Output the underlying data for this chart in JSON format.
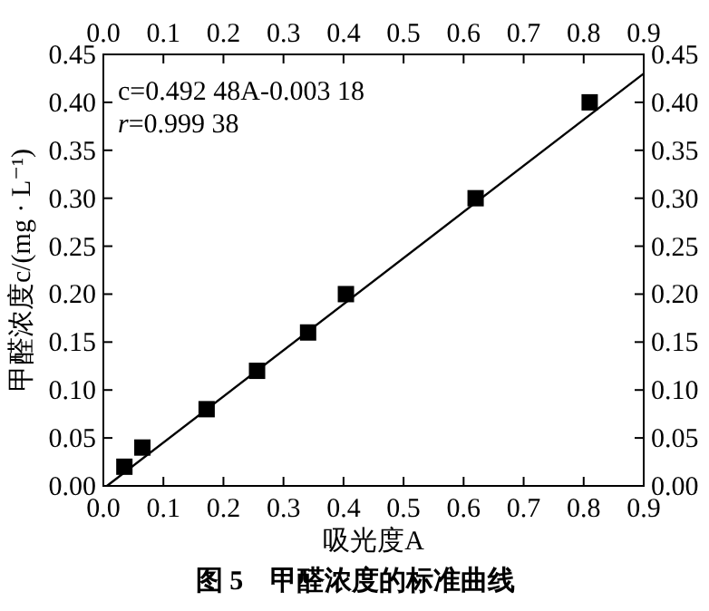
{
  "chart_data": {
    "type": "scatter",
    "title": "图 5　甲醛浓度的标准曲线",
    "xlabel": "吸光度A",
    "ylabel": "甲醛浓度c/(mg · L⁻¹)",
    "annotations": [
      "c=0.492 48A-0.003 18",
      "*r*=0.999 38"
    ],
    "xlim": [
      0,
      0.9
    ],
    "ylim": [
      0,
      0.45
    ],
    "x2lim": [
      0,
      0.9
    ],
    "y2lim": [
      0,
      0.45
    ],
    "xticks": [
      {
        "value": 0,
        "label": "0.0"
      },
      {
        "value": 0.1,
        "label": "0.1"
      },
      {
        "value": 0.2,
        "label": "0.2"
      },
      {
        "value": 0.3,
        "label": "0.3"
      },
      {
        "value": 0.4,
        "label": "0.4"
      },
      {
        "value": 0.5,
        "label": "0.5"
      },
      {
        "value": 0.6,
        "label": "0.6"
      },
      {
        "value": 0.7,
        "label": "0.7"
      },
      {
        "value": 0.8,
        "label": "0.8"
      },
      {
        "value": 0.9,
        "label": "0.9"
      }
    ],
    "x2ticks": [
      {
        "value": 0,
        "label": "0.0"
      },
      {
        "value": 0.1,
        "label": "0.1"
      },
      {
        "value": 0.2,
        "label": "0.2"
      },
      {
        "value": 0.3,
        "label": "0.3"
      },
      {
        "value": 0.4,
        "label": "0.4"
      },
      {
        "value": 0.5,
        "label": "0.5"
      },
      {
        "value": 0.6,
        "label": "0.6"
      },
      {
        "value": 0.7,
        "label": "0.7"
      },
      {
        "value": 0.8,
        "label": "0.8"
      },
      {
        "value": 0.9,
        "label": "0.9"
      }
    ],
    "yticks": [
      {
        "value": 0,
        "label": "0.00"
      },
      {
        "value": 0.05,
        "label": "0.05"
      },
      {
        "value": 0.1,
        "label": "0.10"
      },
      {
        "value": 0.15,
        "label": "0.15"
      },
      {
        "value": 0.2,
        "label": "0.20"
      },
      {
        "value": 0.25,
        "label": "0.25"
      },
      {
        "value": 0.3,
        "label": "0.30"
      },
      {
        "value": 0.35,
        "label": "0.35"
      },
      {
        "value": 0.4,
        "label": "0.40"
      },
      {
        "value": 0.45,
        "label": "0.45"
      }
    ],
    "y2ticks": [
      {
        "value": 0,
        "label": "0.00"
      },
      {
        "value": 0.05,
        "label": "0.05"
      },
      {
        "value": 0.1,
        "label": "0.10"
      },
      {
        "value": 0.15,
        "label": "0.15"
      },
      {
        "value": 0.2,
        "label": "0.20"
      },
      {
        "value": 0.25,
        "label": "0.25"
      },
      {
        "value": 0.3,
        "label": "0.30"
      },
      {
        "value": 0.35,
        "label": "0.35"
      },
      {
        "value": 0.4,
        "label": "0.40"
      },
      {
        "value": 0.45,
        "label": "0.45"
      }
    ],
    "grid": false,
    "series": [
      {
        "type": "scatter",
        "marker": "square",
        "color": "#000000",
        "x": [
          0.035,
          0.065,
          0.172,
          0.256,
          0.341,
          0.404,
          0.62,
          0.81
        ],
        "values": [
          0.02,
          0.04,
          0.08,
          0.12,
          0.16,
          0.2,
          0.3,
          0.4
        ]
      },
      {
        "type": "line",
        "color": "#000000",
        "x": [
          0.006,
          0.9
        ],
        "values": [
          0,
          0.43
        ]
      }
    ]
  }
}
